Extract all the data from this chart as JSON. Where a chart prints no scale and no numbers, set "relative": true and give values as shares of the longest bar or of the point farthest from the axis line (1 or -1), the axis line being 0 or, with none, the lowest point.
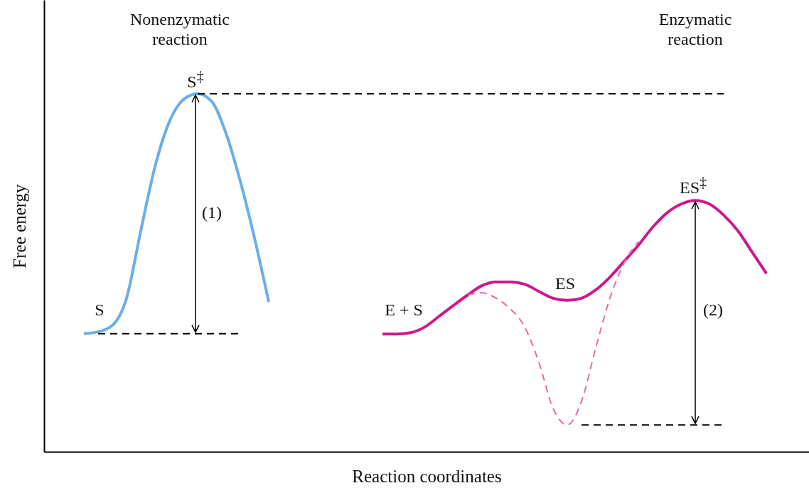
{
  "chart_data": {
    "type": "line",
    "relative": true,
    "xlabel": "Reaction coordinates",
    "ylabel": "Free energy",
    "categories": [
      null,
      null,
      null,
      null,
      null,
      null,
      null,
      null,
      null,
      null,
      null,
      null,
      null,
      null,
      null,
      null,
      null,
      null,
      null,
      null,
      null,
      null,
      null,
      null,
      null,
      null,
      null,
      null,
      null,
      null,
      null,
      null,
      null,
      null,
      null,
      null,
      null,
      null,
      null,
      null,
      null,
      null,
      null,
      null,
      null,
      null,
      null,
      null,
      null
    ],
    "series": [
      {
        "color": "#6aaeea",
        "line_style": "solid",
        "values": [
          0.33,
          0.335,
          0.353,
          0.429,
          0.617,
          0.796,
          0.921,
          0.984,
          1,
          0.978,
          0.889,
          0.756,
          0.597,
          0.419,
          null,
          null,
          null,
          null,
          null,
          null,
          null,
          null,
          null,
          null,
          null,
          null,
          null,
          null,
          null,
          null,
          null,
          null,
          null,
          null,
          null,
          null,
          null,
          null,
          null,
          null,
          null,
          null,
          null,
          null,
          null,
          null,
          null,
          null,
          null
        ]
      },
      {
        "color": "#d0178a",
        "line_style": "solid",
        "values": [
          null,
          null,
          null,
          null,
          null,
          null,
          null,
          null,
          null,
          null,
          null,
          null,
          null,
          null,
          null,
          null,
          null,
          null,
          null,
          null,
          null,
          0.329,
          0.329,
          0.333,
          0.349,
          0.379,
          0.409,
          0.438,
          0.464,
          0.474,
          0.474,
          0.468,
          0.448,
          0.429,
          0.423,
          0.429,
          0.452,
          0.488,
          0.532,
          0.577,
          0.627,
          0.667,
          0.692,
          0.702,
          0.692,
          0.661,
          0.617,
          0.558,
          0.498
        ]
      },
      {
        "color": "#e86aa8",
        "line_style": "dashed",
        "values": [
          null,
          null,
          null,
          null,
          null,
          null,
          null,
          null,
          null,
          null,
          null,
          null,
          null,
          null,
          null,
          null,
          null,
          null,
          null,
          null,
          null,
          null,
          null,
          null,
          null,
          null,
          null,
          0.438,
          0.444,
          0.429,
          0.399,
          0.349,
          0.25,
          0.121,
          0.075,
          0.141,
          0.29,
          0.429,
          0.528,
          0.587,
          null,
          null,
          null,
          null,
          null,
          null,
          null,
          null,
          null
        ]
      },
      {
        "color": "#000000",
        "line_style": "dashed",
        "values": [
          null,
          null,
          null,
          null,
          null,
          null,
          null,
          null,
          1,
          1,
          1,
          1,
          1,
          1,
          1,
          1,
          1,
          1,
          1,
          1,
          1,
          1,
          1,
          1,
          1,
          1,
          1,
          1,
          1,
          1,
          1,
          1,
          1,
          1,
          1,
          1,
          1,
          1,
          1,
          1,
          1,
          1,
          1,
          1,
          1,
          1,
          null,
          null,
          null
        ]
      },
      {
        "color": "#000000",
        "line_style": "dashed",
        "values": [
          null,
          0.33,
          0.33,
          0.33,
          0.33,
          0.33,
          0.33,
          0.33,
          0.33,
          0.33,
          0.33,
          0.33,
          null,
          null,
          null,
          null,
          null,
          null,
          null,
          null,
          null,
          null,
          null,
          null,
          null,
          null,
          null,
          null,
          null,
          null,
          null,
          null,
          null,
          null,
          null,
          null,
          null,
          null,
          null,
          null,
          null,
          null,
          null,
          null,
          null,
          null,
          null,
          null,
          null
        ]
      },
      {
        "color": "#000000",
        "line_style": "dashed",
        "values": [
          null,
          null,
          null,
          null,
          null,
          null,
          null,
          null,
          null,
          null,
          null,
          null,
          null,
          null,
          null,
          null,
          null,
          null,
          null,
          null,
          null,
          null,
          null,
          null,
          null,
          null,
          null,
          null,
          null,
          null,
          null,
          null,
          null,
          null,
          null,
          0.075,
          0.075,
          0.075,
          0.075,
          0.075,
          0.075,
          0.075,
          0.075,
          0.075,
          0.075,
          0.075,
          null,
          null,
          null
        ]
      }
    ],
    "annotations": [
      "Nonenzymatic reaction",
      "Enzymatic reaction",
      "S$^{‡}$",
      "(1)",
      "S",
      "E + S",
      "ES",
      "ES$^{‡}$",
      "(2)"
    ]
  }
}
